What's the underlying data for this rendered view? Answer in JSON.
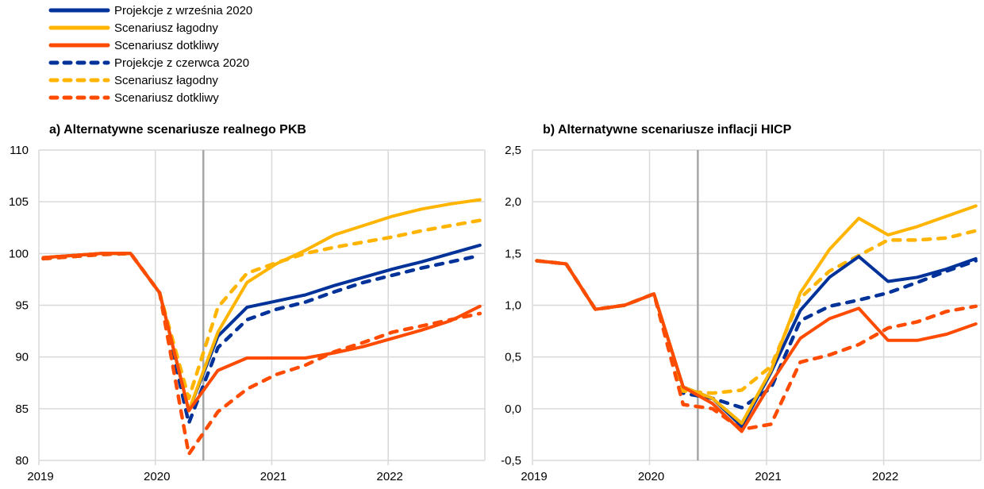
{
  "legend": [
    {
      "label": "Projekcje z września 2020",
      "color": "#003299",
      "style": "solid"
    },
    {
      "label": "Scenariusz łagodny",
      "color": "#FFB400",
      "style": "solid"
    },
    {
      "label": "Scenariusz dotkliwy",
      "color": "#FF4B00",
      "style": "solid"
    },
    {
      "label": "Projekcje z czerwca 2020",
      "color": "#003299",
      "style": "dashed"
    },
    {
      "label": "Scenariusz łagodny",
      "color": "#FFB400",
      "style": "dashed"
    },
    {
      "label": "Scenariusz dotkliwy",
      "color": "#FF4B00",
      "style": "dashed"
    }
  ],
  "chart_data": [
    {
      "type": "line",
      "title": "a) Alternatywne scenariusze realnego PKB",
      "xlabel": "",
      "ylabel": "",
      "x": [
        "2019Q1",
        "2019Q2",
        "2019Q3",
        "2019Q4",
        "2020Q1",
        "2020Q2",
        "2020Q3",
        "2020Q4",
        "2021Q1",
        "2021Q2",
        "2021Q3",
        "2021Q4",
        "2022Q1",
        "2022Q2",
        "2022Q3",
        "2022Q4"
      ],
      "x_tick_labels": [
        "2019",
        "2020",
        "2021",
        "2022"
      ],
      "y_tick_labels": [
        "80",
        "85",
        "90",
        "95",
        "100",
        "105",
        "110"
      ],
      "ylim": [
        80,
        110
      ],
      "y_step": 5,
      "grid": true,
      "vertical_marker": "2020Q2-Q3 boundary",
      "series": [
        {
          "name": "Projekcje z czerwca 2020",
          "color": "#003299",
          "style": "dashed",
          "values": [
            99.5,
            99.7,
            99.9,
            100.0,
            96.2,
            83.6,
            90.9,
            93.6,
            94.6,
            95.3,
            96.3,
            97.2,
            97.9,
            98.6,
            99.2,
            99.8
          ]
        },
        {
          "name": "Scenariusz łagodny (czerwiec)",
          "color": "#FFB400",
          "style": "dashed",
          "values": [
            99.5,
            99.7,
            99.9,
            100.0,
            96.2,
            86.0,
            94.8,
            98.1,
            99.1,
            100.0,
            100.6,
            101.1,
            101.6,
            102.2,
            102.7,
            103.2
          ]
        },
        {
          "name": "Scenariusz dotkliwy (czerwiec)",
          "color": "#FF4B00",
          "style": "dashed",
          "values": [
            99.5,
            99.7,
            99.9,
            100.0,
            96.2,
            80.6,
            84.7,
            86.9,
            88.3,
            89.2,
            90.5,
            91.4,
            92.4,
            93.0,
            93.6,
            94.2
          ]
        },
        {
          "name": "Projekcje z września 2020",
          "color": "#003299",
          "style": "solid",
          "values": [
            99.6,
            99.8,
            100.0,
            100.0,
            96.2,
            84.8,
            92.0,
            94.8,
            95.4,
            96.0,
            96.9,
            97.7,
            98.5,
            99.2,
            100.0,
            100.8
          ]
        },
        {
          "name": "Scenariusz łagodny (wrzesień)",
          "color": "#FFB400",
          "style": "solid",
          "values": [
            99.6,
            99.8,
            100.0,
            100.0,
            96.2,
            84.8,
            92.4,
            97.2,
            99.0,
            100.3,
            101.8,
            102.7,
            103.6,
            104.3,
            104.8,
            105.2
          ]
        },
        {
          "name": "Scenariusz dotkliwy (wrzesień)",
          "color": "#FF4B00",
          "style": "solid",
          "values": [
            99.6,
            99.8,
            100.0,
            100.0,
            96.2,
            84.8,
            88.7,
            89.9,
            89.9,
            89.9,
            90.4,
            91.0,
            91.8,
            92.6,
            93.5,
            94.9
          ]
        }
      ]
    },
    {
      "type": "line",
      "title": "b) Alternatywne scenariusze inflacji HICP",
      "xlabel": "",
      "ylabel": "",
      "x": [
        "2019Q1",
        "2019Q2",
        "2019Q3",
        "2019Q4",
        "2020Q1",
        "2020Q2",
        "2020Q3",
        "2020Q4",
        "2021Q1",
        "2021Q2",
        "2021Q3",
        "2021Q4",
        "2022Q1",
        "2022Q2",
        "2022Q3",
        "2022Q4"
      ],
      "x_tick_labels": [
        "2019",
        "2020",
        "2021",
        "2022"
      ],
      "y_tick_labels": [
        "-0,5",
        "0,0",
        "0,5",
        "1,0",
        "1,5",
        "2,0",
        "2,5"
      ],
      "ylim": [
        -0.5,
        2.5
      ],
      "y_step": 0.5,
      "grid": true,
      "vertical_marker": "2020Q2-Q3 boundary",
      "series": [
        {
          "name": "Projekcje z czerwca 2020",
          "color": "#003299",
          "style": "dashed",
          "values": [
            1.43,
            1.4,
            0.96,
            1.0,
            1.11,
            0.15,
            0.1,
            0.01,
            0.2,
            0.85,
            0.99,
            1.05,
            1.12,
            1.22,
            1.33,
            1.43
          ]
        },
        {
          "name": "Scenariusz łagodny (czerwiec)",
          "color": "#FFB400",
          "style": "dashed",
          "values": [
            1.43,
            1.4,
            0.96,
            1.0,
            1.11,
            0.17,
            0.15,
            0.18,
            0.41,
            1.07,
            1.33,
            1.48,
            1.63,
            1.63,
            1.65,
            1.72
          ]
        },
        {
          "name": "Scenariusz dotkliwy (czerwiec)",
          "color": "#FF4B00",
          "style": "dashed",
          "values": [
            1.43,
            1.4,
            0.96,
            1.0,
            1.11,
            0.04,
            0.0,
            -0.2,
            -0.15,
            0.45,
            0.52,
            0.62,
            0.78,
            0.84,
            0.94,
            0.99
          ]
        },
        {
          "name": "Projekcje z września 2020",
          "color": "#003299",
          "style": "solid",
          "values": [
            1.43,
            1.4,
            0.96,
            1.0,
            1.11,
            0.21,
            0.1,
            -0.17,
            0.35,
            0.95,
            1.27,
            1.47,
            1.23,
            1.27,
            1.35,
            1.45
          ]
        },
        {
          "name": "Scenariusz łagodny (wrzesień)",
          "color": "#FFB400",
          "style": "solid",
          "values": [
            1.43,
            1.4,
            0.96,
            1.0,
            1.11,
            0.21,
            0.1,
            -0.14,
            0.37,
            1.12,
            1.54,
            1.84,
            1.68,
            1.76,
            1.86,
            1.96
          ]
        },
        {
          "name": "Scenariusz dotkliwy (wrzesień)",
          "color": "#FF4B00",
          "style": "solid",
          "values": [
            1.43,
            1.4,
            0.96,
            1.0,
            1.11,
            0.21,
            0.05,
            -0.22,
            0.25,
            0.68,
            0.87,
            0.97,
            0.66,
            0.66,
            0.72,
            0.82
          ]
        }
      ]
    }
  ]
}
